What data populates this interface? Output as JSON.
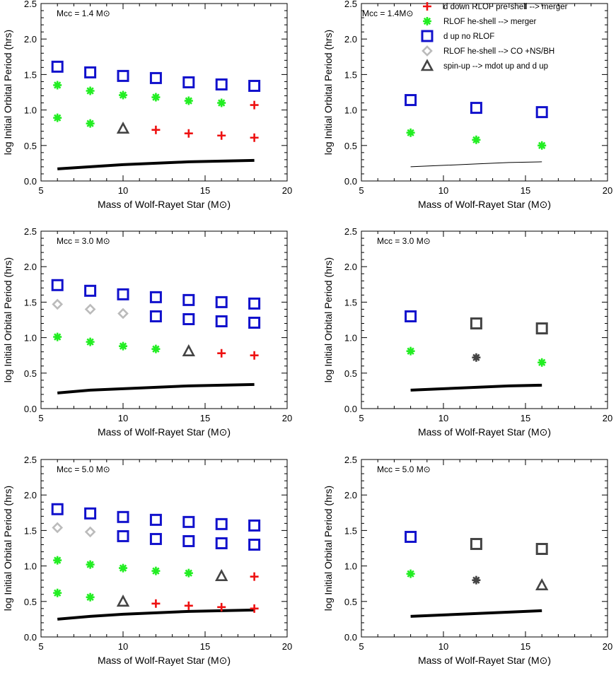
{
  "colors": {
    "merger_pre_shell": "#ee1111",
    "he_shell_merger": "#22ee22",
    "no_rlof": "#1111cc",
    "co_ns_bh": "#bbbbbb",
    "spin_up": "#444444",
    "dark_marker": "#444444",
    "curve": "#000000"
  },
  "legend": [
    {
      "label": "d down RLOF pre-shell --> merger",
      "marker": "plus",
      "color": "#ee1111"
    },
    {
      "label": "RLOF he-shell --> merger",
      "marker": "asterisk",
      "color": "#22ee22"
    },
    {
      "label": "d up no RLOF",
      "marker": "square",
      "color": "#1111cc"
    },
    {
      "label": "RLOF he-shell --> CO +NS/BH",
      "marker": "diamond",
      "color": "#bbbbbb"
    },
    {
      "label": "spin-up --> mdot up and d up",
      "marker": "triangle",
      "color": "#444444"
    }
  ],
  "chart_data": [
    {
      "type": "scatter",
      "annotation": "Mcc = 1.4 M⊙",
      "xlabel": "Mass of Wolf-Rayet Star (M⊙)",
      "ylabel": "log Initial Orbital Period (hrs)",
      "xlim": [
        5,
        20
      ],
      "ylim": [
        0,
        2.5
      ],
      "xticks": [
        "5",
        "10",
        "15",
        "20"
      ],
      "yticks": [
        "0.0",
        "0.5",
        "1.0",
        "1.5",
        "2.0",
        "2.5"
      ],
      "points": [
        {
          "x": 6,
          "y": 1.61,
          "marker": "square",
          "color": "#1111cc"
        },
        {
          "x": 8,
          "y": 1.53,
          "marker": "square",
          "color": "#1111cc"
        },
        {
          "x": 10,
          "y": 1.48,
          "marker": "square",
          "color": "#1111cc"
        },
        {
          "x": 12,
          "y": 1.45,
          "marker": "square",
          "color": "#1111cc"
        },
        {
          "x": 14,
          "y": 1.39,
          "marker": "square",
          "color": "#1111cc"
        },
        {
          "x": 16,
          "y": 1.36,
          "marker": "square",
          "color": "#1111cc"
        },
        {
          "x": 18,
          "y": 1.34,
          "marker": "square",
          "color": "#1111cc"
        },
        {
          "x": 6,
          "y": 1.35,
          "marker": "asterisk",
          "color": "#22ee22"
        },
        {
          "x": 8,
          "y": 1.27,
          "marker": "asterisk",
          "color": "#22ee22"
        },
        {
          "x": 10,
          "y": 1.21,
          "marker": "asterisk",
          "color": "#22ee22"
        },
        {
          "x": 12,
          "y": 1.18,
          "marker": "asterisk",
          "color": "#22ee22"
        },
        {
          "x": 14,
          "y": 1.13,
          "marker": "asterisk",
          "color": "#22ee22"
        },
        {
          "x": 16,
          "y": 1.1,
          "marker": "asterisk",
          "color": "#22ee22"
        },
        {
          "x": 18,
          "y": 1.07,
          "marker": "plus",
          "color": "#ee1111"
        },
        {
          "x": 6,
          "y": 0.89,
          "marker": "asterisk",
          "color": "#22ee22"
        },
        {
          "x": 8,
          "y": 0.81,
          "marker": "asterisk",
          "color": "#22ee22"
        },
        {
          "x": 10,
          "y": 0.74,
          "marker": "triangle",
          "color": "#444444"
        },
        {
          "x": 12,
          "y": 0.72,
          "marker": "plus",
          "color": "#ee1111"
        },
        {
          "x": 14,
          "y": 0.67,
          "marker": "plus",
          "color": "#ee1111"
        },
        {
          "x": 16,
          "y": 0.64,
          "marker": "plus",
          "color": "#ee1111"
        },
        {
          "x": 18,
          "y": 0.61,
          "marker": "plus",
          "color": "#ee1111"
        }
      ],
      "curve": {
        "x": [
          6,
          8,
          10,
          12,
          14,
          16,
          18
        ],
        "y": [
          0.17,
          0.2,
          0.23,
          0.25,
          0.27,
          0.28,
          0.29
        ],
        "width": 4
      }
    },
    {
      "type": "scatter",
      "annotation": "Mcc = 1.4M⊙",
      "xlabel": "Mass of Wolf-Rayet Star (M⊙)",
      "ylabel": "log Initial Orbital Period (hrs)",
      "xlim": [
        5,
        20
      ],
      "ylim": [
        0,
        2.5
      ],
      "xticks": [
        "5",
        "10",
        "15",
        "20"
      ],
      "yticks": [
        "0.0",
        "0.5",
        "1.0",
        "1.5",
        "2.0",
        "2.5"
      ],
      "points": [
        {
          "x": 8,
          "y": 1.14,
          "marker": "square",
          "color": "#1111cc"
        },
        {
          "x": 12,
          "y": 1.03,
          "marker": "square",
          "color": "#1111cc"
        },
        {
          "x": 16,
          "y": 0.97,
          "marker": "square",
          "color": "#1111cc"
        },
        {
          "x": 8,
          "y": 0.68,
          "marker": "asterisk",
          "color": "#22ee22"
        },
        {
          "x": 12,
          "y": 0.58,
          "marker": "asterisk",
          "color": "#22ee22"
        },
        {
          "x": 16,
          "y": 0.5,
          "marker": "asterisk",
          "color": "#22ee22"
        }
      ],
      "curve": {
        "x": [
          8,
          10,
          12,
          14,
          16
        ],
        "y": [
          0.2,
          0.22,
          0.24,
          0.26,
          0.27
        ],
        "width": 1
      }
    },
    {
      "type": "scatter",
      "annotation": "Mcc = 3.0 M⊙",
      "xlabel": "Mass of Wolf-Rayet Star (M⊙)",
      "ylabel": "log Initial Orbital Period (hrs)",
      "xlim": [
        5,
        20
      ],
      "ylim": [
        0,
        2.5
      ],
      "xticks": [
        "5",
        "10",
        "15",
        "20"
      ],
      "yticks": [
        "0.0",
        "0.5",
        "1.0",
        "1.5",
        "2.0",
        "2.5"
      ],
      "points": [
        {
          "x": 6,
          "y": 1.74,
          "marker": "square",
          "color": "#1111cc"
        },
        {
          "x": 8,
          "y": 1.66,
          "marker": "square",
          "color": "#1111cc"
        },
        {
          "x": 10,
          "y": 1.61,
          "marker": "square",
          "color": "#1111cc"
        },
        {
          "x": 12,
          "y": 1.57,
          "marker": "square",
          "color": "#1111cc"
        },
        {
          "x": 14,
          "y": 1.53,
          "marker": "square",
          "color": "#1111cc"
        },
        {
          "x": 16,
          "y": 1.5,
          "marker": "square",
          "color": "#1111cc"
        },
        {
          "x": 18,
          "y": 1.48,
          "marker": "square",
          "color": "#1111cc"
        },
        {
          "x": 12,
          "y": 1.3,
          "marker": "square",
          "color": "#1111cc"
        },
        {
          "x": 14,
          "y": 1.26,
          "marker": "square",
          "color": "#1111cc"
        },
        {
          "x": 16,
          "y": 1.23,
          "marker": "square",
          "color": "#1111cc"
        },
        {
          "x": 18,
          "y": 1.21,
          "marker": "square",
          "color": "#1111cc"
        },
        {
          "x": 6,
          "y": 1.47,
          "marker": "diamond",
          "color": "#bbbbbb"
        },
        {
          "x": 8,
          "y": 1.4,
          "marker": "diamond",
          "color": "#bbbbbb"
        },
        {
          "x": 10,
          "y": 1.34,
          "marker": "diamond",
          "color": "#bbbbbb"
        },
        {
          "x": 6,
          "y": 1.01,
          "marker": "asterisk",
          "color": "#22ee22"
        },
        {
          "x": 8,
          "y": 0.94,
          "marker": "asterisk",
          "color": "#22ee22"
        },
        {
          "x": 10,
          "y": 0.88,
          "marker": "asterisk",
          "color": "#22ee22"
        },
        {
          "x": 12,
          "y": 0.84,
          "marker": "asterisk",
          "color": "#22ee22"
        },
        {
          "x": 14,
          "y": 0.81,
          "marker": "triangle",
          "color": "#444444"
        },
        {
          "x": 16,
          "y": 0.78,
          "marker": "plus",
          "color": "#ee1111"
        },
        {
          "x": 18,
          "y": 0.75,
          "marker": "plus",
          "color": "#ee1111"
        }
      ],
      "curve": {
        "x": [
          6,
          8,
          10,
          12,
          14,
          16,
          18
        ],
        "y": [
          0.22,
          0.26,
          0.28,
          0.3,
          0.32,
          0.33,
          0.34
        ],
        "width": 4
      }
    },
    {
      "type": "scatter",
      "annotation": "Mcc = 3.0 M⊙",
      "xlabel": "Mass of Wolf-Rayet Star (M⊙)",
      "ylabel": "log Initial Orbital Period (hrs)",
      "xlim": [
        5,
        20
      ],
      "ylim": [
        0,
        2.5
      ],
      "xticks": [
        "5",
        "10",
        "15",
        "20"
      ],
      "yticks": [
        "0.0",
        "0.5",
        "1.0",
        "1.5",
        "2.0",
        "2.5"
      ],
      "points": [
        {
          "x": 8,
          "y": 1.3,
          "marker": "square",
          "color": "#1111cc"
        },
        {
          "x": 12,
          "y": 1.2,
          "marker": "square",
          "color": "#444444"
        },
        {
          "x": 16,
          "y": 1.13,
          "marker": "square",
          "color": "#444444"
        },
        {
          "x": 8,
          "y": 0.81,
          "marker": "asterisk",
          "color": "#22ee22"
        },
        {
          "x": 12,
          "y": 0.72,
          "marker": "asterisk",
          "color": "#444444"
        },
        {
          "x": 16,
          "y": 0.65,
          "marker": "asterisk",
          "color": "#22ee22"
        }
      ],
      "curve": {
        "x": [
          8,
          10,
          12,
          14,
          16
        ],
        "y": [
          0.26,
          0.28,
          0.3,
          0.32,
          0.33
        ],
        "width": 4
      }
    },
    {
      "type": "scatter",
      "annotation": "Mcc = 5.0 M⊙",
      "xlabel": "Mass of Wolf-Rayet Star (M⊙)",
      "ylabel": "log Initial Orbital Period (hrs)",
      "xlim": [
        5,
        20
      ],
      "ylim": [
        0,
        2.5
      ],
      "xticks": [
        "5",
        "10",
        "15",
        "20"
      ],
      "yticks": [
        "0.0",
        "0.5",
        "1.0",
        "1.5",
        "2.0",
        "2.5"
      ],
      "points": [
        {
          "x": 6,
          "y": 1.8,
          "marker": "square",
          "color": "#1111cc"
        },
        {
          "x": 8,
          "y": 1.74,
          "marker": "square",
          "color": "#1111cc"
        },
        {
          "x": 10,
          "y": 1.69,
          "marker": "square",
          "color": "#1111cc"
        },
        {
          "x": 12,
          "y": 1.65,
          "marker": "square",
          "color": "#1111cc"
        },
        {
          "x": 14,
          "y": 1.62,
          "marker": "square",
          "color": "#1111cc"
        },
        {
          "x": 16,
          "y": 1.59,
          "marker": "square",
          "color": "#1111cc"
        },
        {
          "x": 18,
          "y": 1.57,
          "marker": "square",
          "color": "#1111cc"
        },
        {
          "x": 10,
          "y": 1.42,
          "marker": "square",
          "color": "#1111cc"
        },
        {
          "x": 12,
          "y": 1.38,
          "marker": "square",
          "color": "#1111cc"
        },
        {
          "x": 14,
          "y": 1.35,
          "marker": "square",
          "color": "#1111cc"
        },
        {
          "x": 16,
          "y": 1.32,
          "marker": "square",
          "color": "#1111cc"
        },
        {
          "x": 18,
          "y": 1.3,
          "marker": "square",
          "color": "#1111cc"
        },
        {
          "x": 6,
          "y": 1.54,
          "marker": "diamond",
          "color": "#bbbbbb"
        },
        {
          "x": 8,
          "y": 1.48,
          "marker": "diamond",
          "color": "#bbbbbb"
        },
        {
          "x": 6,
          "y": 1.08,
          "marker": "asterisk",
          "color": "#22ee22"
        },
        {
          "x": 8,
          "y": 1.02,
          "marker": "asterisk",
          "color": "#22ee22"
        },
        {
          "x": 10,
          "y": 0.97,
          "marker": "asterisk",
          "color": "#22ee22"
        },
        {
          "x": 12,
          "y": 0.93,
          "marker": "asterisk",
          "color": "#22ee22"
        },
        {
          "x": 14,
          "y": 0.9,
          "marker": "asterisk",
          "color": "#22ee22"
        },
        {
          "x": 16,
          "y": 0.86,
          "marker": "triangle",
          "color": "#444444"
        },
        {
          "x": 18,
          "y": 0.85,
          "marker": "plus",
          "color": "#ee1111"
        },
        {
          "x": 6,
          "y": 0.62,
          "marker": "asterisk",
          "color": "#22ee22"
        },
        {
          "x": 8,
          "y": 0.56,
          "marker": "asterisk",
          "color": "#22ee22"
        },
        {
          "x": 10,
          "y": 0.5,
          "marker": "triangle",
          "color": "#444444"
        },
        {
          "x": 12,
          "y": 0.47,
          "marker": "plus",
          "color": "#ee1111"
        },
        {
          "x": 14,
          "y": 0.44,
          "marker": "plus",
          "color": "#ee1111"
        },
        {
          "x": 16,
          "y": 0.42,
          "marker": "plus",
          "color": "#ee1111"
        },
        {
          "x": 18,
          "y": 0.4,
          "marker": "plus",
          "color": "#ee1111"
        }
      ],
      "curve": {
        "x": [
          6,
          8,
          10,
          12,
          14,
          16,
          18
        ],
        "y": [
          0.25,
          0.29,
          0.32,
          0.34,
          0.36,
          0.37,
          0.38
        ],
        "width": 4
      }
    },
    {
      "type": "scatter",
      "annotation": "Mcc = 5.0 M⊙",
      "xlabel": "Mass of Wolf-Rayet Star (M⊙)",
      "ylabel": "log Initial Orbital Period (hrs)",
      "xlim": [
        5,
        20
      ],
      "ylim": [
        0,
        2.5
      ],
      "xticks": [
        "5",
        "10",
        "15",
        "20"
      ],
      "yticks": [
        "0.0",
        "0.5",
        "1.0",
        "1.5",
        "2.0",
        "2.5"
      ],
      "points": [
        {
          "x": 8,
          "y": 1.41,
          "marker": "square",
          "color": "#1111cc"
        },
        {
          "x": 12,
          "y": 1.31,
          "marker": "square",
          "color": "#444444"
        },
        {
          "x": 16,
          "y": 1.24,
          "marker": "square",
          "color": "#444444"
        },
        {
          "x": 8,
          "y": 0.89,
          "marker": "asterisk",
          "color": "#22ee22"
        },
        {
          "x": 12,
          "y": 0.8,
          "marker": "asterisk",
          "color": "#444444"
        },
        {
          "x": 16,
          "y": 0.73,
          "marker": "triangle",
          "color": "#444444"
        }
      ],
      "curve": {
        "x": [
          8,
          10,
          12,
          14,
          16
        ],
        "y": [
          0.29,
          0.31,
          0.33,
          0.35,
          0.37
        ],
        "width": 4
      }
    }
  ]
}
